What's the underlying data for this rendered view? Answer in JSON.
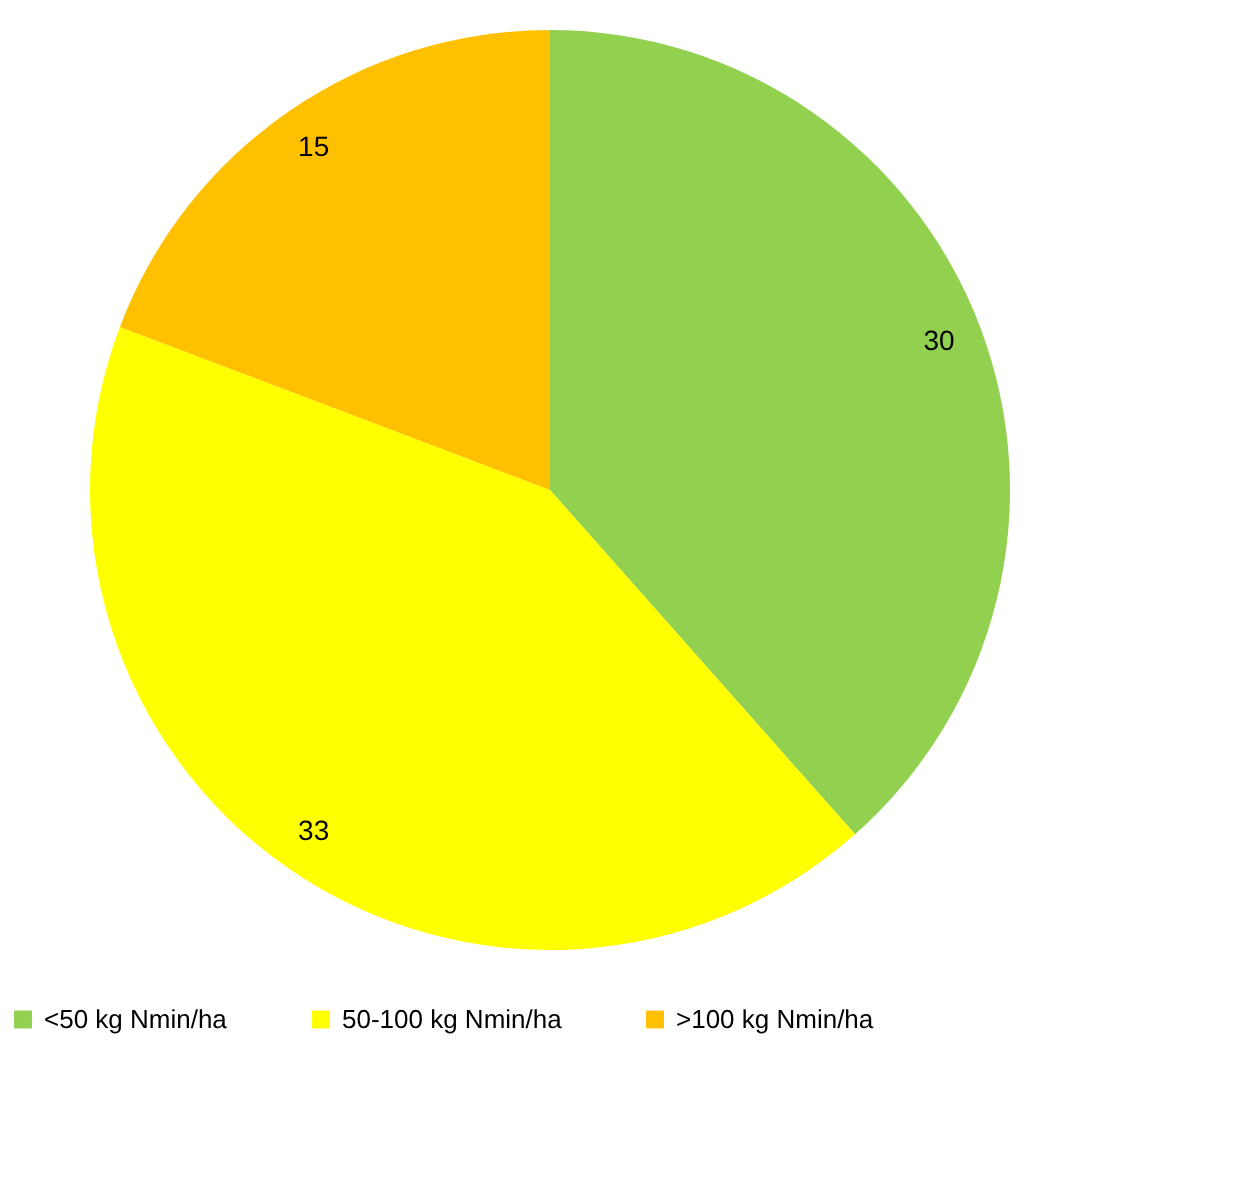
{
  "chart_data": {
    "type": "pie",
    "categories": [
      "<50 kg Nmin/ha",
      "50-100 kg Nmin/ha",
      ">100 kg Nmin/ha"
    ],
    "values": [
      30,
      33,
      15
    ],
    "colors": [
      "#92d050",
      "#ffff00",
      "#ffc000"
    ],
    "data_labels": true,
    "legend": "bottom"
  }
}
